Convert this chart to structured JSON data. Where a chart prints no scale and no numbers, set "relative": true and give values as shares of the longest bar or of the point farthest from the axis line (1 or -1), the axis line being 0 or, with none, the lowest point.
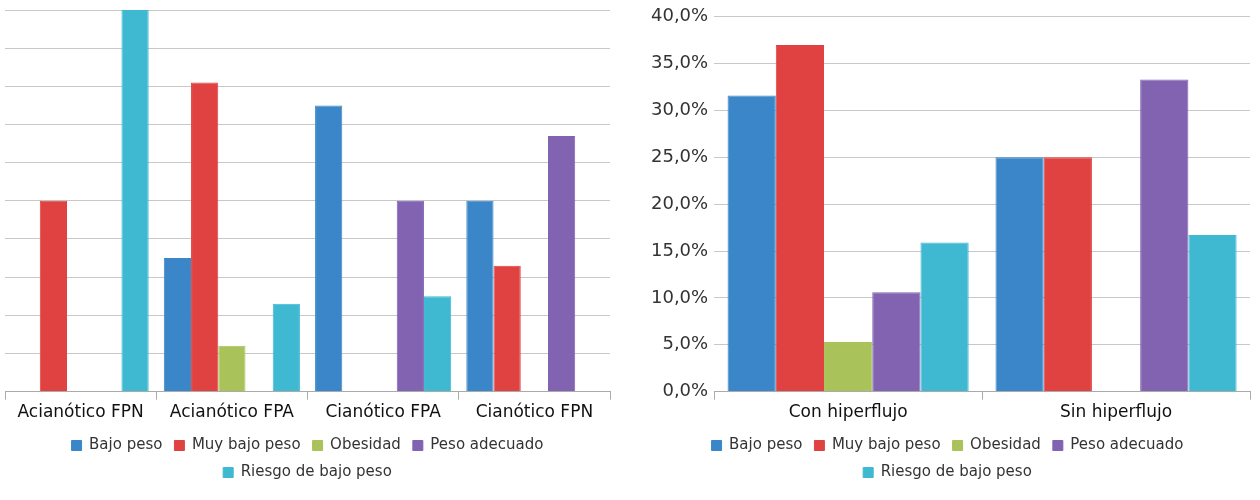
{
  "chart_data": [
    {
      "type": "bar",
      "relative": true,
      "grid": "y",
      "legend": "bottom",
      "categories": [
        "Acianótico FPN",
        "Acianótico FPA",
        "Cianótico FPA",
        "Cianótico FPN"
      ],
      "series": [
        {
          "name": "Bajo peso",
          "color": "#3a86c8",
          "values": [
            0,
            0.35,
            0.75,
            0.5
          ]
        },
        {
          "name": "Muy bajo peso",
          "color": "#e04242",
          "values": [
            0.5,
            0.81,
            0,
            0.33
          ]
        },
        {
          "name": "Obesidad",
          "color": "#a9c25a",
          "values": [
            0,
            0.12,
            0,
            0
          ]
        },
        {
          "name": "Peso adecuado",
          "color": "#8163b2",
          "values": [
            0,
            0,
            0.5,
            0.67
          ]
        },
        {
          "name": "Riesgo de bajo peso",
          "color": "#3fb8d2",
          "values": [
            1,
            0.23,
            0.25,
            0
          ]
        }
      ]
    },
    {
      "type": "bar",
      "grid": "y",
      "legend": "bottom",
      "categories": [
        "Con hiperflujo",
        "Sin hiperflujo"
      ],
      "ylim": [
        0,
        40
      ],
      "yticks": [
        {
          "value": 0,
          "label": "0,0%"
        },
        {
          "value": 5,
          "label": "5,0%"
        },
        {
          "value": 10,
          "label": "10,0%"
        },
        {
          "value": 15,
          "label": "15,0%"
        },
        {
          "value": 20,
          "label": "20,0%"
        },
        {
          "value": 25,
          "label": "25,0%"
        },
        {
          "value": 30,
          "label": "30,0%"
        },
        {
          "value": 35,
          "label": "35,0%"
        },
        {
          "value": 40,
          "label": "40,0%"
        }
      ],
      "series": [
        {
          "name": "Bajo peso",
          "color": "#3a86c8",
          "values": [
            31.6,
            25
          ]
        },
        {
          "name": "Muy bajo peso",
          "color": "#e04242",
          "values": [
            37,
            25
          ]
        },
        {
          "name": "Obesidad",
          "color": "#a9c25a",
          "values": [
            5.3,
            0
          ]
        },
        {
          "name": "Peso adecuado",
          "color": "#8163b2",
          "values": [
            10.6,
            33.3
          ]
        },
        {
          "name": "Riesgo de bajo peso",
          "color": "#3fb8d2",
          "values": [
            15.9,
            16.7
          ]
        }
      ]
    }
  ]
}
